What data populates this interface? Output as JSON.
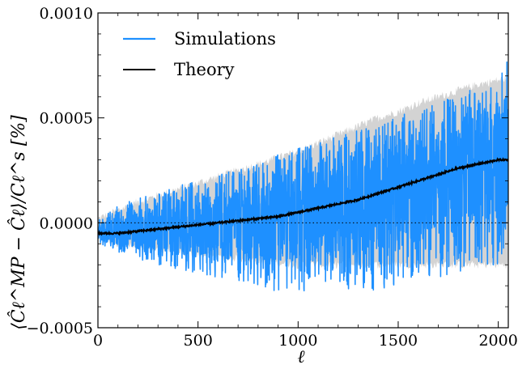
{
  "chart_data": {
    "type": "line",
    "xlabel": "ℓ",
    "ylabel": "⟨Ĉℓ^MP − Ĉℓ⟩/Cℓ^s [%]",
    "xlim": [
      0,
      2050
    ],
    "ylim": [
      -0.0005,
      0.001
    ],
    "x_ticks": [
      0,
      500,
      1000,
      1500,
      2000
    ],
    "x_tick_labels": [
      "0",
      "500",
      "1000",
      "1500",
      "2000"
    ],
    "y_ticks": [
      -0.0005,
      0.0,
      0.0005,
      0.001
    ],
    "y_tick_labels": [
      "−0.0005",
      "0.0000",
      "0.0005",
      "0.0010"
    ],
    "grid": false,
    "legend_position": "top-left",
    "reference_line": {
      "y": 0.0,
      "style": "dotted"
    },
    "series": [
      {
        "name": "Simulations",
        "color": "#1e90ff",
        "style": "noisy-line",
        "x": [
          2,
          100,
          200,
          300,
          400,
          500,
          600,
          700,
          800,
          900,
          1000,
          1100,
          1200,
          1300,
          1400,
          1500,
          1600,
          1700,
          1800,
          1900,
          2000,
          2048
        ],
        "mean": [
          -5e-05,
          -5e-05,
          -4e-05,
          -3e-05,
          -2e-05,
          -1e-05,
          0.0,
          1e-05,
          2e-05,
          3e-05,
          5e-05,
          7e-05,
          9e-05,
          0.00011,
          0.00014,
          0.00017,
          0.0002,
          0.00023,
          0.00026,
          0.00028,
          0.0003,
          0.00031
        ],
        "low": [
          -0.0001,
          -0.00014,
          -0.00018,
          -0.0002,
          -0.00022,
          -0.00024,
          -0.00026,
          -0.00028,
          -0.0003,
          -0.00034,
          -0.00033,
          -0.00031,
          -0.00032,
          -0.00033,
          -0.00032,
          -0.0003,
          -0.00028,
          -0.00026,
          -0.00024,
          -0.00022,
          -0.0002,
          -0.0002
        ],
        "high": [
          2e-05,
          8e-05,
          0.00012,
          0.00015,
          0.00018,
          0.0002,
          0.00023,
          0.00026,
          0.00029,
          0.00033,
          0.00036,
          0.00039,
          0.00041,
          0.00044,
          0.00047,
          0.00051,
          0.00054,
          0.00058,
          0.00061,
          0.00065,
          0.00068,
          0.00078
        ]
      },
      {
        "name": "Theory",
        "color": "#000000",
        "style": "line",
        "x": [
          2,
          100,
          200,
          300,
          400,
          500,
          600,
          700,
          800,
          900,
          1000,
          1100,
          1200,
          1300,
          1400,
          1500,
          1600,
          1700,
          1800,
          1900,
          2000,
          2048
        ],
        "y": [
          -5e-05,
          -5e-05,
          -4e-05,
          -3e-05,
          -2e-05,
          -1e-05,
          0.0,
          1e-05,
          2e-05,
          3e-05,
          5e-05,
          7e-05,
          9e-05,
          0.00011,
          0.00014,
          0.00017,
          0.0002,
          0.00023,
          0.00026,
          0.00028,
          0.0003,
          0.0003
        ]
      }
    ],
    "band": {
      "color": "#d3d3d3",
      "x": [
        2,
        100,
        200,
        300,
        400,
        500,
        600,
        700,
        800,
        900,
        1000,
        1100,
        1200,
        1300,
        1400,
        1500,
        1600,
        1700,
        1800,
        1900,
        2000,
        2048
      ],
      "low": [
        -8e-05,
        -0.0001,
        -0.00012,
        -0.00013,
        -0.00014,
        -0.00015,
        -0.00016,
        -0.00017,
        -0.00018,
        -0.00019,
        -0.0002,
        -0.0002,
        -0.0002,
        -0.0002,
        -0.0002,
        -0.0002,
        -0.0002,
        -0.0002,
        -0.0002,
        -0.0002,
        -0.0002,
        -0.0002
      ],
      "high": [
        2e-05,
        6e-05,
        0.0001,
        0.00013,
        0.00016,
        0.00019,
        0.00022,
        0.00025,
        0.00028,
        0.00031,
        0.00034,
        0.00038,
        0.00042,
        0.00046,
        0.0005,
        0.00053,
        0.00057,
        0.0006,
        0.00063,
        0.00066,
        0.00068,
        0.00069
      ]
    }
  }
}
